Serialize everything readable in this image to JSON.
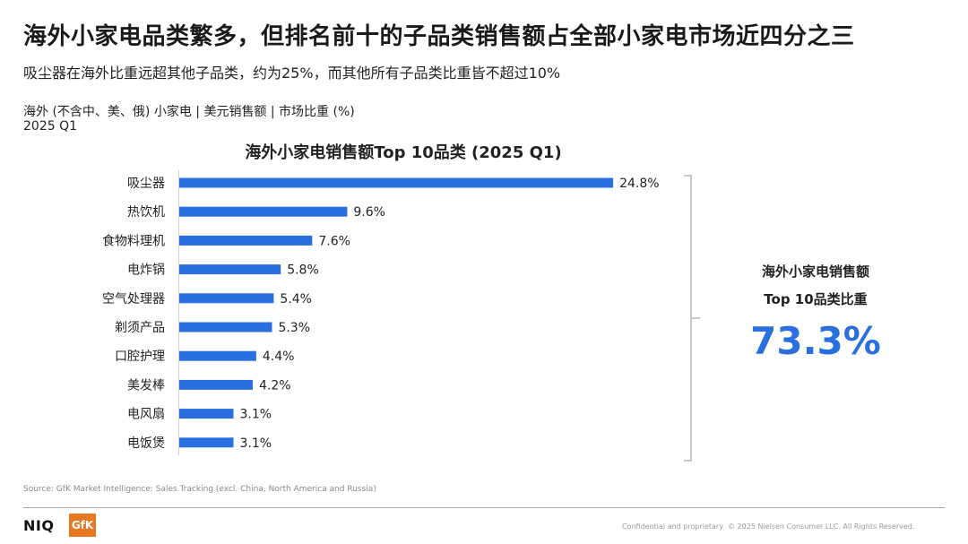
{
  "header": {
    "title": "海外小家电品类繁多，但排名前十的子品类销售额占全部小家电市场近四分之三",
    "subtitle": "吸尘器在海外比重远超其他子品类，约为25%，而其他所有子品类比重皆不超过10%",
    "meta_line1": "海外 (不含中、美、俄) 小家电 | 美元销售额 | 市场比重 (%)",
    "meta_line2": "2025 Q1"
  },
  "chart_data": {
    "type": "bar",
    "orientation": "horizontal",
    "title": "海外小家电销售额Top 10品类 (2025 Q1)",
    "categories": [
      "吸尘器",
      "热饮机",
      "食物料理机",
      "电炸锅",
      "空气处理器",
      "剃须产品",
      "口腔护理",
      "美发棒",
      "电风扇",
      "电饭煲"
    ],
    "values": [
      24.8,
      9.6,
      7.6,
      5.8,
      5.4,
      5.3,
      4.4,
      4.2,
      3.1,
      3.1
    ],
    "value_labels": [
      "24.8%",
      "9.6%",
      "7.6%",
      "5.8%",
      "5.4%",
      "5.3%",
      "4.4%",
      "4.2%",
      "3.1%",
      "3.1%"
    ],
    "unit": "%",
    "bar_color": "#2a6fe0",
    "xlim": [
      0,
      25
    ],
    "grid": false,
    "legend": "none"
  },
  "callout": {
    "label_line1": "海外小家电销售额",
    "label_line2": "Top 10品类比重",
    "value": "73.3%",
    "color": "#2a6fe0"
  },
  "footer": {
    "source": "Source: GfK Market Intelligence: Sales Tracking (excl. China, North America and Russia)",
    "logo_primary": "NIQ",
    "logo_secondary": "GfK",
    "confidential": "Confidential and proprietary",
    "copyright": "© 2025 Nielsen Consumer LLC. All Rights Reserved."
  }
}
